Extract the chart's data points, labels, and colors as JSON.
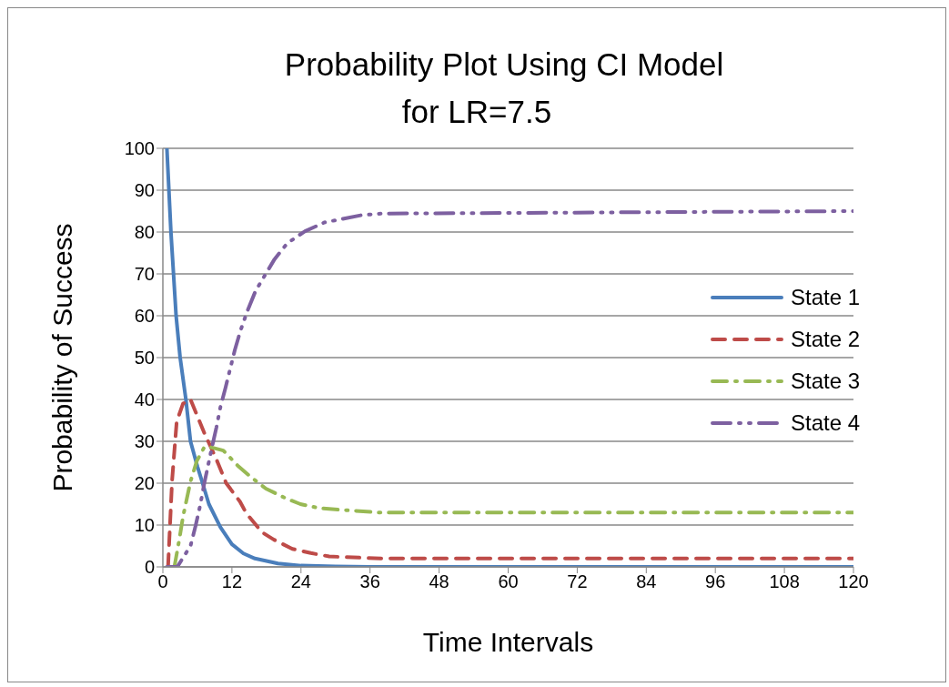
{
  "chart_data": {
    "type": "line",
    "title": "Probability Plot Using CI Model\nfor LR=7.5",
    "xlabel": "Time Intervals",
    "ylabel": "Probability of Success",
    "xlim": [
      0,
      120
    ],
    "xticks": [
      0,
      12,
      24,
      36,
      48,
      60,
      72,
      84,
      96,
      108,
      120
    ],
    "ylim": [
      0,
      100
    ],
    "yticks": [
      0,
      10,
      20,
      30,
      40,
      50,
      60,
      70,
      80,
      90,
      100
    ],
    "grid": "y",
    "legend": "right",
    "marker": "none",
    "series": [
      {
        "name": "State 1",
        "color": "#4a7ebb",
        "line_style": "solid",
        "x": [
          0.7,
          1.4,
          2.3,
          3,
          4,
          4.8,
          6,
          6.9,
          8,
          10,
          12,
          14,
          16,
          20,
          24,
          30,
          36,
          120
        ],
        "values": [
          100,
          80,
          60,
          50,
          40,
          30,
          24,
          20,
          15,
          9.5,
          5.4,
          3.2,
          2,
          0.8,
          0.3,
          0.1,
          0,
          0
        ]
      },
      {
        "name": "State 2",
        "color": "#be4b48",
        "line_style": "dashed",
        "x": [
          0.9,
          1.6,
          2.4,
          3.5,
          4.8,
          7.2,
          9.3,
          11,
          13.4,
          14.5,
          17.2,
          19.3,
          22.5,
          25.7,
          28.9,
          37.9,
          120
        ],
        "values": [
          0,
          20.6,
          34.7,
          39,
          40,
          32,
          25.7,
          20,
          15.6,
          12.8,
          8.3,
          6.5,
          4.3,
          3.3,
          2.5,
          2,
          2
        ]
      },
      {
        "name": "State 3",
        "color": "#98b954",
        "line_style": "dashdot",
        "x": [
          2,
          2.9,
          3.5,
          4.8,
          5.9,
          7.2,
          8,
          10.5,
          13,
          15.1,
          17.9,
          21.5,
          23.9,
          27.3,
          37.4,
          120
        ],
        "values": [
          0,
          6.9,
          12,
          20.4,
          25.3,
          28.6,
          28.7,
          27.8,
          24.2,
          21.7,
          18.7,
          16.3,
          15,
          14,
          13,
          13
        ]
      },
      {
        "name": "State 4",
        "color": "#7d60a0",
        "line_style": "dashdotdot",
        "x": [
          0.7,
          2.5,
          4.8,
          5.7,
          6.5,
          7.2,
          8.5,
          9.3,
          10,
          10.9,
          12.5,
          13.5,
          14.7,
          16.1,
          19.4,
          21.6,
          24.7,
          28.1,
          34.4,
          37.9,
          120
        ],
        "values": [
          0,
          0,
          5,
          9.9,
          14.8,
          20,
          28.4,
          33.3,
          38.2,
          42.9,
          51.8,
          56.5,
          61.2,
          65.9,
          73.5,
          77.3,
          80.2,
          82.3,
          84,
          84.4,
          85
        ]
      }
    ]
  }
}
